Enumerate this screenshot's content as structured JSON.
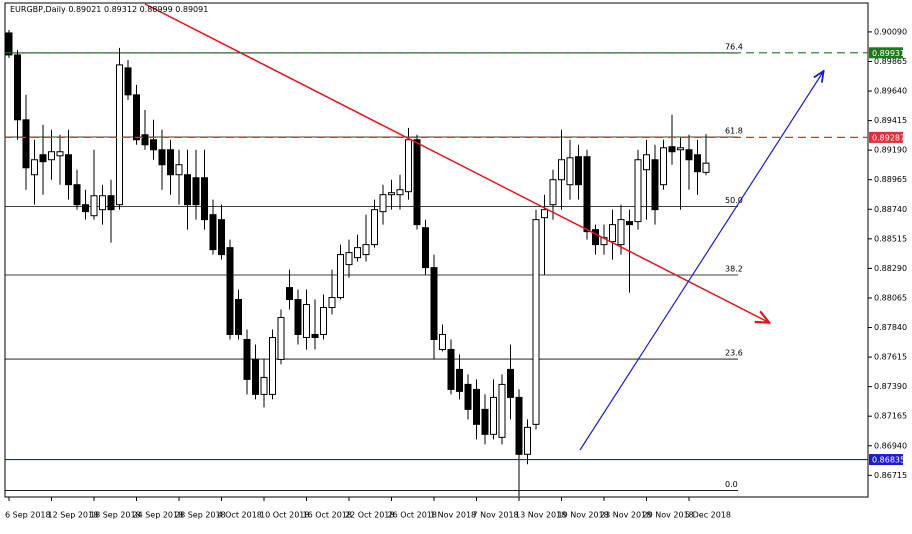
{
  "chart_data": {
    "type": "candlestick",
    "title": "EURGBP,Daily",
    "categories": [
      "6 Sep 2018",
      null,
      null,
      null,
      null,
      "12 Sep 2018",
      null,
      null,
      null,
      null,
      "18 Sep 2018",
      null,
      null,
      null,
      null,
      "24 Sep 2018",
      null,
      null,
      null,
      null,
      "28 Sep 2018",
      null,
      null,
      null,
      null,
      "4 Oct 2018",
      null,
      null,
      null,
      null,
      "10 Oct 2018",
      null,
      null,
      null,
      null,
      "16 Oct 2018",
      null,
      null,
      null,
      null,
      "22 Oct 2018",
      null,
      null,
      null,
      null,
      "26 Oct 2018",
      null,
      null,
      null,
      null,
      "1 Nov 2018",
      null,
      null,
      null,
      null,
      "7 Nov 2018",
      null,
      null,
      null,
      null,
      "13 Nov 2018",
      null,
      null,
      null,
      null,
      "19 Nov 2018",
      null,
      null,
      null,
      null,
      "23 Nov 2018",
      null,
      null,
      null,
      null,
      "29 Nov 2018",
      null,
      null,
      null,
      null,
      "5 Dec 2018",
      null,
      null
    ],
    "open": [
      0.90082,
      0.89915,
      0.89421,
      0.89003,
      0.89155,
      0.89117,
      0.89147,
      0.89155,
      0.88927,
      0.88775,
      0.88691,
      0.88737,
      0.88843,
      0.88775,
      0.89816,
      0.89611,
      0.89307,
      0.89269,
      0.89193,
      0.89193,
      0.89003,
      0.89003,
      0.8898,
      0.8898,
      0.88699,
      0.88661,
      0.88448,
      0.88053,
      0.87749,
      0.87597,
      0.87331,
      0.87331,
      0.87597,
      0.88144,
      0.88053,
      0.87764,
      0.87787,
      0.87787,
      0.87992,
      0.88068,
      0.88319,
      0.88372,
      0.88395,
      0.88471,
      0.88722,
      0.88851,
      0.88851,
      0.88874,
      0.89269,
      0.886,
      0.88296,
      0.87673,
      0.87673,
      0.87521,
      0.87407,
      0.87369,
      0.87217,
      0.87027,
      0.87004,
      0.87521,
      0.87308,
      0.86875,
      0.87103,
      0.88676,
      0.88775,
      0.88965,
      0.88927,
      0.8914,
      0.8914,
      0.88585,
      0.88471,
      0.88494,
      0.88471,
      0.88646,
      0.88646,
      0.89041,
      0.89117,
      0.88927,
      0.89216,
      0.89193,
      0.89193,
      0.89155,
      0.89021
    ],
    "high": [
      0.90105,
      0.89953,
      0.89611,
      0.89269,
      0.89383,
      0.89345,
      0.89307,
      0.89345,
      0.89041,
      0.88889,
      0.89193,
      0.88927,
      0.88965,
      0.89968,
      0.89877,
      0.89687,
      0.89497,
      0.89421,
      0.89345,
      0.89269,
      0.89193,
      0.89193,
      0.89193,
      0.89193,
      0.88813,
      0.88775,
      0.88509,
      0.88129,
      0.87825,
      0.87711,
      0.87597,
      0.87825,
      0.87977,
      0.88281,
      0.88129,
      0.88129,
      0.88053,
      0.88091,
      0.88281,
      0.88471,
      0.88509,
      0.88547,
      0.88699,
      0.88813,
      0.88927,
      0.88965,
      0.89003,
      0.8936,
      0.89307,
      0.88661,
      0.88395,
      0.87863,
      0.87749,
      0.87635,
      0.87483,
      0.87445,
      0.87331,
      0.87445,
      0.87483,
      0.87711,
      0.87369,
      0.87141,
      0.88737,
      0.88851,
      0.89041,
      0.89345,
      0.89269,
      0.89231,
      0.89193,
      0.88623,
      0.88623,
      0.88737,
      0.88775,
      0.88737,
      0.89193,
      0.89269,
      0.89231,
      0.89269,
      0.89459,
      0.89284,
      0.89307,
      0.89269,
      0.89312
    ],
    "low": [
      0.89892,
      0.89269,
      0.88889,
      0.88775,
      0.88851,
      0.88965,
      0.88927,
      0.88813,
      0.88737,
      0.88661,
      0.88661,
      0.88623,
      0.88486,
      0.88737,
      0.89573,
      0.89231,
      0.89193,
      0.89117,
      0.88889,
      0.88851,
      0.88775,
      0.88585,
      0.88661,
      0.88585,
      0.88395,
      0.88357,
      0.87749,
      0.87749,
      0.87331,
      0.87293,
      0.87232,
      0.87293,
      0.87559,
      0.87977,
      0.87711,
      0.87673,
      0.87673,
      0.87749,
      0.87939,
      0.88053,
      0.8822,
      0.88342,
      0.88342,
      0.88448,
      0.88623,
      0.88737,
      0.88737,
      0.88813,
      0.88585,
      0.88243,
      0.87597,
      0.87658,
      0.87331,
      0.87293,
      0.87141,
      0.86989,
      0.86951,
      0.86989,
      0.86951,
      0.87141,
      0.86556,
      0.86799,
      0.87065,
      0.88243,
      0.88661,
      0.88737,
      0.88813,
      0.88813,
      0.88509,
      0.88395,
      0.88395,
      0.88357,
      0.88395,
      0.88106,
      0.88585,
      0.88661,
      0.88623,
      0.88889,
      0.89079,
      0.88737,
      0.88889,
      0.88851,
      0.88999
    ],
    "close": [
      0.89915,
      0.89421,
      0.89056,
      0.89117,
      0.89102,
      0.89178,
      0.89178,
      0.88927,
      0.88775,
      0.88722,
      0.88843,
      0.88843,
      0.88737,
      0.89839,
      0.89611,
      0.89269,
      0.89231,
      0.89193,
      0.89079,
      0.89003,
      0.89079,
      0.88775,
      0.88775,
      0.88661,
      0.88433,
      0.88395,
      0.87787,
      0.87787,
      0.87445,
      0.87331,
      0.8746,
      0.87764,
      0.87916,
      0.88053,
      0.87787,
      0.88015,
      0.87764,
      0.87992,
      0.88068,
      0.88395,
      0.8841,
      0.88448,
      0.88471,
      0.88737,
      0.88851,
      0.88866,
      0.88889,
      0.89269,
      0.88623,
      0.88296,
      0.87749,
      0.87787,
      0.87369,
      0.87354,
      0.87217,
      0.87103,
      0.87027,
      0.87308,
      0.87407,
      0.87308,
      0.86875,
      0.8708,
      0.88661,
      0.88737,
      0.88965,
      0.89117,
      0.89132,
      0.88927,
      0.8857,
      0.88471,
      0.88524,
      0.88623,
      0.88661,
      0.88623,
      0.89117,
      0.89155,
      0.88737,
      0.89208,
      0.89178,
      0.89208,
      0.89117,
      0.89026,
      0.89091
    ],
    "bull_color": "#ffffff",
    "bear_color": "#000000",
    "ylim": [
      0.8655,
      0.9031
    ],
    "yticks": [
      {
        "value": 0.9009,
        "label": "0.90090"
      },
      0.89865,
      {
        "value": 0.8964,
        "label": "0.89640"
      },
      0.89415,
      {
        "value": 0.8919,
        "label": "0.89190"
      },
      0.88965,
      {
        "value": 0.8874,
        "label": "0.88740"
      },
      0.88515,
      {
        "value": 0.8829,
        "label": "0.88290"
      },
      0.88065,
      {
        "value": 0.8784,
        "label": "0.87840"
      },
      0.87615,
      {
        "value": 0.8739,
        "label": "0.87390"
      },
      0.87165,
      {
        "value": 0.8694,
        "label": "0.86940"
      },
      0.86715
    ],
    "hlines": [
      {
        "value": 0.89931,
        "color": "#1a7a1a",
        "dashed": true
      },
      {
        "value": 0.89287,
        "color": "#e0303a",
        "dashed": true
      },
      {
        "value": 0.86835,
        "color": "#1c1ccc",
        "dashed": false
      }
    ],
    "fib_levels": [
      {
        "label": "76.4",
        "value": 0.8993
      },
      {
        "label": "61.8",
        "value": 0.8929
      },
      {
        "label": "50.0",
        "value": 0.8876
      },
      {
        "label": "38.2",
        "value": 0.8824
      },
      {
        "label": "23.6",
        "value": 0.876
      },
      {
        "label": "0.0",
        "value": 0.866
      }
    ]
  }
}
